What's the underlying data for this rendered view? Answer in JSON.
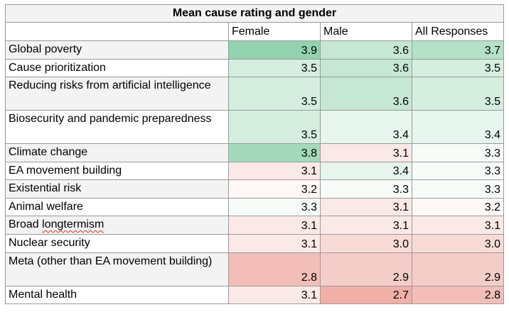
{
  "chart_data": {
    "type": "table",
    "title": "Mean cause rating and gender",
    "columns": [
      "Female",
      "Male",
      "All Responses"
    ],
    "rows": [
      {
        "label": "Global poverty",
        "values": [
          "3.9",
          "3.6",
          "3.7"
        ]
      },
      {
        "label": "Cause prioritization",
        "values": [
          "3.5",
          "3.6",
          "3.5"
        ]
      },
      {
        "label": "Reducing risks from artificial intelligence",
        "values": [
          "3.5",
          "3.6",
          "3.5"
        ]
      },
      {
        "label": "Biosecurity and pandemic preparedness",
        "values": [
          "3.5",
          "3.4",
          "3.4"
        ]
      },
      {
        "label": "Climate change",
        "values": [
          "3.8",
          "3.1",
          "3.3"
        ]
      },
      {
        "label": "EA movement building",
        "values": [
          "3.1",
          "3.4",
          "3.3"
        ]
      },
      {
        "label": "Existential risk",
        "values": [
          "3.2",
          "3.3",
          "3.3"
        ]
      },
      {
        "label": "Animal welfare",
        "values": [
          "3.3",
          "3.1",
          "3.2"
        ]
      },
      {
        "label": "Broad longtermism",
        "values": [
          "3.1",
          "3.1",
          "3.1"
        ]
      },
      {
        "label": "Nuclear security",
        "values": [
          "3.1",
          "3.0",
          "3.0"
        ]
      },
      {
        "label": "Meta (other than EA movement building)",
        "values": [
          "2.8",
          "2.9",
          "2.9"
        ]
      },
      {
        "label": "Mental health",
        "values": [
          "3.1",
          "2.7",
          "2.8"
        ]
      }
    ],
    "color_scale": {
      "low": "#f0b0a8",
      "mid": "#ffffff",
      "high": "#93d3af"
    }
  }
}
